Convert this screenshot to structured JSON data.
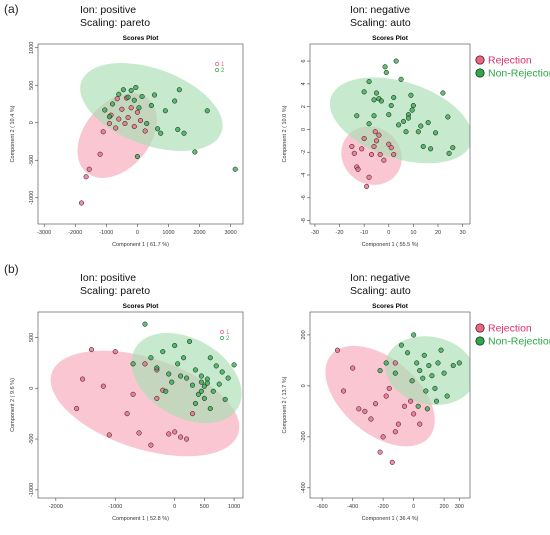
{
  "panel_labels": {
    "a": "(a)",
    "b": "(b)"
  },
  "headers": {
    "a_left": {
      "ion": "Ion: positive",
      "scaling": "Scaling: pareto"
    },
    "a_right": {
      "ion": "Ion: negative",
      "scaling": "Scaling: auto"
    },
    "b_left": {
      "ion": "Ion: positive",
      "scaling": "Scaling: pareto"
    },
    "b_right": {
      "ion": "Ion: negative",
      "scaling": "Scaling: auto"
    }
  },
  "colors": {
    "rejection": "#f06480",
    "rejection_fill": "#f6a7b9",
    "nonrejection": "#2ea84a",
    "nonrejection_fill": "#a9dfb4",
    "rejection_label": "#e0306a",
    "nonrejection_label": "#2ea84a"
  },
  "chart_data": [
    {
      "id": "a_left",
      "type": "scatter",
      "title": "Scores Plot",
      "xlabel": "Component 1 ( 61.7 %)",
      "ylabel": "Component 2 ( 10.4 %)",
      "xlim": [
        -3200,
        3400
      ],
      "ylim": [
        -1350,
        1050
      ],
      "xticks": [
        -3000,
        -2000,
        -1000,
        0,
        1000,
        2000,
        3000
      ],
      "yticks": [
        -1000,
        -500,
        0,
        500,
        1000
      ],
      "legend": {
        "style": "small",
        "entries": [
          "1",
          "2"
        ]
      },
      "ellipses": [
        {
          "group": "rejection",
          "cx": -650,
          "cy": -170,
          "rx": 1550,
          "ry": 640,
          "angle_deg": 50
        },
        {
          "group": "nonrejection",
          "cx": 450,
          "cy": 210,
          "rx": 2400,
          "ry": 750,
          "angle_deg": -20
        }
      ],
      "series": [
        {
          "group": "rejection",
          "points": [
            [
              -1800,
              -1070
            ],
            [
              -1650,
              -720
            ],
            [
              -1550,
              -620
            ],
            [
              -1200,
              -420
            ],
            [
              -1100,
              -120
            ],
            [
              -900,
              -10
            ],
            [
              -850,
              100
            ],
            [
              -700,
              -70
            ],
            [
              -600,
              50
            ],
            [
              -500,
              180
            ],
            [
              -400,
              -10
            ],
            [
              -300,
              70
            ],
            [
              -200,
              200
            ],
            [
              -100,
              -50
            ],
            [
              0,
              140
            ],
            [
              100,
              30
            ],
            [
              250,
              -110
            ],
            [
              -650,
              320
            ],
            [
              -350,
              330
            ]
          ]
        },
        {
          "group": "nonrejection",
          "points": [
            [
              -1050,
              170
            ],
            [
              -800,
              250
            ],
            [
              -600,
              380
            ],
            [
              -450,
              440
            ],
            [
              -300,
              340
            ],
            [
              -200,
              430
            ],
            [
              -100,
              300
            ],
            [
              -50,
              470
            ],
            [
              50,
              200
            ],
            [
              150,
              350
            ],
            [
              300,
              -10
            ],
            [
              450,
              230
            ],
            [
              550,
              370
            ],
            [
              650,
              -80
            ],
            [
              750,
              -140
            ],
            [
              900,
              160
            ],
            [
              1200,
              290
            ],
            [
              1300,
              -90
            ],
            [
              1350,
              440
            ],
            [
              1500,
              -140
            ],
            [
              1850,
              -390
            ],
            [
              2250,
              160
            ],
            [
              3150,
              -620
            ],
            [
              -900,
              80
            ],
            [
              0,
              -450
            ]
          ]
        }
      ]
    },
    {
      "id": "a_right",
      "type": "scatter",
      "title": "Scores Plot",
      "xlabel": "Component 1 ( 55.5 %)",
      "ylabel": "Component 2 ( 10.0 %)",
      "xlim": [
        -32,
        33
      ],
      "ylim": [
        -8.3,
        7.5
      ],
      "xticks": [
        -30,
        -20,
        -10,
        0,
        10,
        20,
        30
      ],
      "yticks": [
        -8,
        -6,
        -4,
        -2,
        0,
        2,
        4,
        6
      ],
      "legend": {
        "style": "big",
        "entries": [
          "Rejection",
          "Non-Rejection"
        ]
      },
      "ellipses": [
        {
          "group": "rejection",
          "cx": -7,
          "cy": -2.3,
          "rx": 11.5,
          "ry": 4.8,
          "angle_deg": 55
        },
        {
          "group": "nonrejection",
          "cx": 5,
          "cy": 0.8,
          "rx": 30,
          "ry": 5.9,
          "angle_deg": -18
        }
      ],
      "series": [
        {
          "group": "rejection",
          "points": [
            [
              -15,
              -1.5
            ],
            [
              -14,
              -2.1
            ],
            [
              -13,
              -3.3
            ],
            [
              -12.5,
              -3.5
            ],
            [
              -11,
              -1.7
            ],
            [
              -10,
              -0.8
            ],
            [
              -9,
              -5
            ],
            [
              -8,
              -4.2
            ],
            [
              -7,
              -2.2
            ],
            [
              -6,
              -1.5
            ],
            [
              -5,
              -1
            ],
            [
              -4,
              -0.5
            ],
            [
              -3.5,
              -2.2
            ],
            [
              -2,
              -2.7
            ],
            [
              0,
              -1.3
            ],
            [
              1,
              -1.6
            ],
            [
              2,
              -2.2
            ],
            [
              -5.5,
              -0.2
            ]
          ]
        },
        {
          "group": "nonrejection",
          "points": [
            [
              -13,
              1.2
            ],
            [
              -10,
              3.3
            ],
            [
              -8,
              4.2
            ],
            [
              -6,
              2.6
            ],
            [
              -5,
              3.2
            ],
            [
              -4,
              2.7
            ],
            [
              -3,
              2.5
            ],
            [
              -1.5,
              5.5
            ],
            [
              -1,
              5
            ],
            [
              0,
              1.3
            ],
            [
              1,
              2.1
            ],
            [
              2,
              2.8
            ],
            [
              3,
              6
            ],
            [
              4,
              0.4
            ],
            [
              5,
              4.4
            ],
            [
              6,
              0.7
            ],
            [
              7,
              -0.2
            ],
            [
              8,
              1.3
            ],
            [
              9,
              3
            ],
            [
              9.5,
              1.7
            ],
            [
              10,
              2.1
            ],
            [
              12,
              -0.2
            ],
            [
              13,
              0.3
            ],
            [
              14,
              -1.5
            ],
            [
              16,
              0.6
            ],
            [
              17,
              -1.7
            ],
            [
              19,
              -0.3
            ],
            [
              22,
              3.2
            ],
            [
              24,
              1.1
            ],
            [
              24.5,
              -2.1
            ],
            [
              26,
              -1.6
            ],
            [
              -8,
              0.5
            ],
            [
              -6,
              1.2
            ],
            [
              8,
              1
            ]
          ]
        }
      ]
    },
    {
      "id": "b_left",
      "type": "scatter",
      "title": "Scores Plot",
      "xlabel": "Component 1 ( 52.8 %)",
      "ylabel": "Component 2 ( 9.6 %)",
      "xlim": [
        -2300,
        1150
      ],
      "ylim": [
        -1080,
        750
      ],
      "xticks": [
        -2000,
        -1000,
        0,
        500,
        1000
      ],
      "xticklabels": [
        "-2000",
        "-1000",
        "0",
        "500",
        "1000"
      ],
      "yticks": [
        -1000,
        -500,
        0,
        500
      ],
      "legend": {
        "style": "small",
        "entries": [
          "1",
          "2"
        ]
      },
      "ellipses": [
        {
          "group": "rejection",
          "cx": -500,
          "cy": -150,
          "rx": 1650,
          "ry": 580,
          "angle_deg": -18
        },
        {
          "group": "nonrejection",
          "cx": 200,
          "cy": 100,
          "rx": 1000,
          "ry": 500,
          "angle_deg": -30
        }
      ],
      "series": [
        {
          "group": "rejection",
          "points": [
            [
              -1650,
              -200
            ],
            [
              -1550,
              90
            ],
            [
              -1400,
              380
            ],
            [
              -1200,
              20
            ],
            [
              -1100,
              -460
            ],
            [
              -1000,
              360
            ],
            [
              -800,
              -250
            ],
            [
              -700,
              -60
            ],
            [
              -600,
              -440
            ],
            [
              -400,
              -560
            ],
            [
              -300,
              -100
            ],
            [
              -200,
              -20
            ],
            [
              -100,
              -450
            ],
            [
              0,
              -430
            ],
            [
              100,
              -480
            ],
            [
              200,
              -500
            ],
            [
              300,
              -250
            ],
            [
              -500,
              240
            ],
            [
              -300,
              180
            ]
          ]
        },
        {
          "group": "nonrejection",
          "points": [
            [
              -700,
              240
            ],
            [
              -500,
              630
            ],
            [
              -400,
              300
            ],
            [
              -300,
              200
            ],
            [
              -200,
              360
            ],
            [
              -100,
              140
            ],
            [
              0,
              420
            ],
            [
              50,
              240
            ],
            [
              100,
              120
            ],
            [
              150,
              300
            ],
            [
              200,
              100
            ],
            [
              250,
              460
            ],
            [
              300,
              30
            ],
            [
              350,
              180
            ],
            [
              400,
              -60
            ],
            [
              450,
              120
            ],
            [
              500,
              20
            ],
            [
              550,
              90
            ],
            [
              600,
              300
            ],
            [
              650,
              -30
            ],
            [
              700,
              220
            ],
            [
              750,
              40
            ],
            [
              800,
              160
            ],
            [
              850,
              -110
            ],
            [
              900,
              100
            ],
            [
              1000,
              230
            ],
            [
              -150,
              -30
            ],
            [
              -50,
              60
            ],
            [
              350,
              -150
            ],
            [
              450,
              60
            ],
            [
              500,
              -100
            ],
            [
              600,
              -200
            ],
            [
              550,
              50
            ],
            [
              450,
              -30
            ]
          ]
        }
      ]
    },
    {
      "id": "b_right",
      "type": "scatter",
      "title": "Scores Plot",
      "xlabel": "Component 1 ( 36.4 %)",
      "ylabel": "Component 2 ( 13.7 %)",
      "xlim": [
        -680,
        370
      ],
      "ylim": [
        -440,
        290
      ],
      "xticks": [
        -600,
        -400,
        -200,
        0,
        200,
        300
      ],
      "xticklabels": [
        "-600",
        "-400",
        "-200",
        "0",
        "200",
        "300"
      ],
      "yticks": [
        -400,
        -200,
        0,
        200
      ],
      "legend": {
        "style": "big",
        "entries": [
          "Rejection",
          "Non-Rejection"
        ]
      },
      "ellipses": [
        {
          "group": "rejection",
          "cx": -220,
          "cy": -40,
          "rx": 420,
          "ry": 190,
          "angle_deg": -40
        },
        {
          "group": "nonrejection",
          "cx": 110,
          "cy": 60,
          "rx": 300,
          "ry": 170,
          "angle_deg": -12
        }
      ],
      "series": [
        {
          "group": "rejection",
          "points": [
            [
              -500,
              140
            ],
            [
              -460,
              -20
            ],
            [
              -400,
              70
            ],
            [
              -360,
              -90
            ],
            [
              -320,
              -100
            ],
            [
              -280,
              -130
            ],
            [
              -250,
              -70
            ],
            [
              -220,
              -260
            ],
            [
              -200,
              -200
            ],
            [
              -180,
              -40
            ],
            [
              -160,
              -10
            ],
            [
              -140,
              -300
            ],
            [
              -120,
              -180
            ],
            [
              -100,
              -150
            ],
            [
              -60,
              -80
            ],
            [
              -20,
              -60
            ],
            [
              0,
              -110
            ],
            [
              40,
              -150
            ],
            [
              -120,
              90
            ]
          ]
        },
        {
          "group": "nonrejection",
          "points": [
            [
              -220,
              60
            ],
            [
              -180,
              90
            ],
            [
              -120,
              50
            ],
            [
              -80,
              160
            ],
            [
              -40,
              130
            ],
            [
              0,
              200
            ],
            [
              20,
              90
            ],
            [
              40,
              60
            ],
            [
              60,
              30
            ],
            [
              80,
              -20
            ],
            [
              100,
              80
            ],
            [
              120,
              40
            ],
            [
              140,
              -10
            ],
            [
              160,
              90
            ],
            [
              180,
              140
            ],
            [
              200,
              50
            ],
            [
              220,
              -40
            ],
            [
              260,
              80
            ],
            [
              300,
              90
            ],
            [
              30,
              -80
            ],
            [
              90,
              -90
            ],
            [
              150,
              -60
            ],
            [
              70,
              120
            ],
            [
              -10,
              20
            ]
          ]
        }
      ]
    }
  ]
}
